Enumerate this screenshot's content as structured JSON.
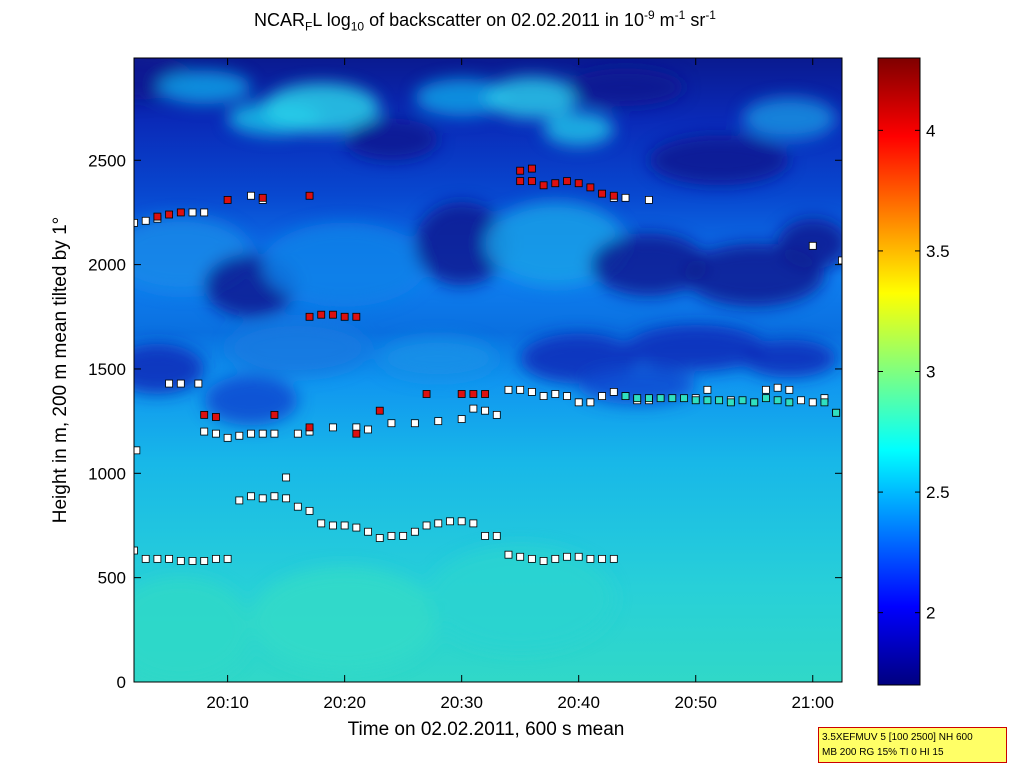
{
  "title": {
    "prefix": "NCAR",
    "sub1": "F",
    "mid1": "L log",
    "sub2": "10",
    "mid2": " of backscatter on 02.02.2011 in 10",
    "sup1": "-9",
    "mid3": " m",
    "sup2": "-1",
    "mid4": " sr",
    "sup3": "-1"
  },
  "note": {
    "line1": "3.5XEFMUV 5 [100 2500] NH 600",
    "line2": "MB 200 RG 15% TI 0 HI 15"
  },
  "chart_data": {
    "type": "heatmap",
    "title": "NCAR_F L log10 of backscatter on 02.02.2011 in 10^-9 m^-1 sr^-1",
    "xlabel": "Time on 02.02.2011, 600 s mean",
    "ylabel": "Height in m, 200 m mean tilted by 1°",
    "xlim_minutes": [
      2,
      62.5
    ],
    "ylim": [
      0,
      2990
    ],
    "xticks": [
      {
        "value": 10,
        "label": "20:10"
      },
      {
        "value": 20,
        "label": "20:20"
      },
      {
        "value": 30,
        "label": "20:30"
      },
      {
        "value": 40,
        "label": "20:40"
      },
      {
        "value": 50,
        "label": "20:50"
      },
      {
        "value": 60,
        "label": "21:00"
      }
    ],
    "yticks": [
      {
        "value": 0,
        "label": "0"
      },
      {
        "value": 500,
        "label": "500"
      },
      {
        "value": 1000,
        "label": "1000"
      },
      {
        "value": 1500,
        "label": "1500"
      },
      {
        "value": 2000,
        "label": "2000"
      },
      {
        "value": 2500,
        "label": "2500"
      }
    ],
    "colorbar": {
      "range": [
        1.7,
        4.3
      ],
      "colormap": "jet",
      "ticks": [
        {
          "value": 2,
          "label": "2"
        },
        {
          "value": 2.5,
          "label": "2.5"
        },
        {
          "value": 3,
          "label": "3"
        },
        {
          "value": 3.5,
          "label": "3.5"
        },
        {
          "value": 4,
          "label": "4"
        }
      ]
    },
    "markers": {
      "white": [
        [
          2,
          2200
        ],
        [
          3,
          2210
        ],
        [
          4,
          2220
        ],
        [
          7,
          2250
        ],
        [
          8,
          2250
        ],
        [
          2.2,
          1110
        ],
        [
          5,
          1430
        ],
        [
          6,
          1430
        ],
        [
          7.5,
          1430
        ],
        [
          8,
          1200
        ],
        [
          9,
          1190
        ],
        [
          10,
          1170
        ],
        [
          11,
          1180
        ],
        [
          12,
          1190
        ],
        [
          13,
          1190
        ],
        [
          14,
          1190
        ],
        [
          16,
          1190
        ],
        [
          17,
          1200
        ],
        [
          19,
          1220
        ],
        [
          21,
          1220
        ],
        [
          22,
          1210
        ],
        [
          24,
          1240
        ],
        [
          26,
          1240
        ],
        [
          28,
          1250
        ],
        [
          30,
          1260
        ],
        [
          31,
          1310
        ],
        [
          32,
          1300
        ],
        [
          33,
          1280
        ],
        [
          34,
          1400
        ],
        [
          35,
          1400
        ],
        [
          36,
          1390
        ],
        [
          37,
          1370
        ],
        [
          38,
          1380
        ],
        [
          39,
          1370
        ],
        [
          40,
          1340
        ],
        [
          41,
          1340
        ],
        [
          42,
          1370
        ],
        [
          43,
          1390
        ],
        [
          44,
          1370
        ],
        [
          45,
          1350
        ],
        [
          46,
          1350
        ],
        [
          50,
          1360
        ],
        [
          51,
          1400
        ],
        [
          53,
          1350
        ],
        [
          55,
          1340
        ],
        [
          56,
          1400
        ],
        [
          57,
          1410
        ],
        [
          58,
          1400
        ],
        [
          59,
          1350
        ],
        [
          60,
          1340
        ],
        [
          61,
          1360
        ],
        [
          62,
          1290
        ],
        [
          2,
          630
        ],
        [
          3,
          590
        ],
        [
          4,
          590
        ],
        [
          5,
          590
        ],
        [
          6,
          580
        ],
        [
          7,
          580
        ],
        [
          8,
          580
        ],
        [
          9,
          590
        ],
        [
          10,
          590
        ],
        [
          11,
          870
        ],
        [
          12,
          890
        ],
        [
          13,
          880
        ],
        [
          14,
          890
        ],
        [
          15,
          880
        ],
        [
          16,
          840
        ],
        [
          17,
          820
        ],
        [
          18,
          760
        ],
        [
          19,
          750
        ],
        [
          20,
          750
        ],
        [
          21,
          740
        ],
        [
          22,
          720
        ],
        [
          23,
          690
        ],
        [
          24,
          700
        ],
        [
          25,
          700
        ],
        [
          26,
          720
        ],
        [
          27,
          750
        ],
        [
          28,
          760
        ],
        [
          29,
          770
        ],
        [
          30,
          770
        ],
        [
          31,
          760
        ],
        [
          32,
          700
        ],
        [
          33,
          700
        ],
        [
          34,
          610
        ],
        [
          35,
          600
        ],
        [
          36,
          590
        ],
        [
          37,
          580
        ],
        [
          38,
          590
        ],
        [
          39,
          600
        ],
        [
          40,
          600
        ],
        [
          41,
          590
        ],
        [
          42,
          590
        ],
        [
          43,
          590
        ],
        [
          15,
          980
        ],
        [
          12,
          2330
        ],
        [
          13,
          2310
        ],
        [
          43,
          2320
        ],
        [
          44,
          2320
        ],
        [
          46,
          2310
        ],
        [
          60,
          2090
        ],
        [
          62.5,
          2020
        ]
      ],
      "red": [
        [
          5,
          2240
        ],
        [
          6,
          2250
        ],
        [
          4,
          2230
        ],
        [
          10,
          2310
        ],
        [
          13,
          2320
        ],
        [
          17,
          2330
        ],
        [
          18,
          1760
        ],
        [
          19,
          1760
        ],
        [
          20,
          1750
        ],
        [
          21,
          1750
        ],
        [
          17,
          1750
        ],
        [
          8,
          1280
        ],
        [
          9,
          1270
        ],
        [
          14,
          1280
        ],
        [
          17,
          1220
        ],
        [
          21,
          1190
        ],
        [
          23,
          1300
        ],
        [
          27,
          1380
        ],
        [
          30,
          1380
        ],
        [
          31,
          1380
        ],
        [
          32,
          1380
        ],
        [
          35,
          2450
        ],
        [
          36,
          2460
        ],
        [
          35,
          2400
        ],
        [
          36,
          2400
        ],
        [
          37,
          2380
        ],
        [
          38,
          2390
        ],
        [
          39,
          2400
        ],
        [
          40,
          2390
        ],
        [
          41,
          2370
        ],
        [
          42,
          2340
        ],
        [
          43,
          2330
        ]
      ],
      "cyan": [
        [
          44,
          1370
        ],
        [
          45,
          1360
        ],
        [
          46,
          1360
        ],
        [
          47,
          1360
        ],
        [
          48,
          1360
        ],
        [
          49,
          1360
        ],
        [
          50,
          1350
        ],
        [
          51,
          1350
        ],
        [
          52,
          1350
        ],
        [
          53,
          1340
        ],
        [
          54,
          1350
        ],
        [
          55,
          1340
        ],
        [
          56,
          1360
        ],
        [
          57,
          1350
        ],
        [
          58,
          1340
        ],
        [
          61,
          1340
        ],
        [
          62,
          1290
        ]
      ]
    }
  }
}
